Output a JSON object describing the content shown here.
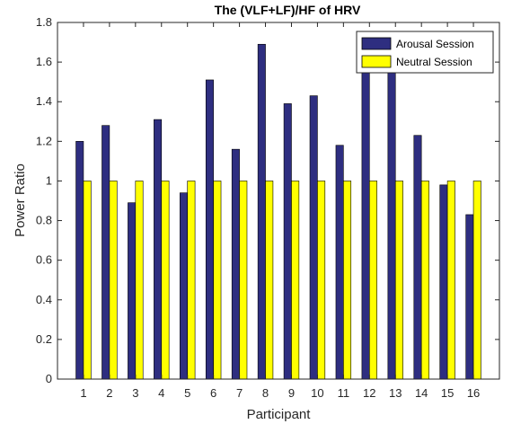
{
  "chart_data": {
    "type": "bar",
    "title": "The (VLF+LF)/HF of HRV",
    "xlabel": "Participant",
    "ylabel": "Power Ratio",
    "categories": [
      "1",
      "2",
      "3",
      "4",
      "5",
      "6",
      "7",
      "8",
      "9",
      "10",
      "11",
      "12",
      "13",
      "14",
      "15",
      "16"
    ],
    "series": [
      {
        "name": "Arousal Session",
        "color": "#2E2E80",
        "values": [
          1.2,
          1.28,
          0.89,
          1.31,
          0.94,
          1.51,
          1.16,
          1.69,
          1.39,
          1.43,
          1.18,
          1.56,
          1.56,
          1.23,
          0.98,
          0.83
        ]
      },
      {
        "name": "Neutral Session",
        "color": "#FFFF00",
        "values": [
          1,
          1,
          1,
          1,
          1,
          1,
          1,
          1,
          1,
          1,
          1,
          1,
          1,
          1,
          1,
          1
        ]
      }
    ],
    "ylim": [
      0,
      1.8
    ],
    "yticks": [
      "0",
      "0.2",
      "0.4",
      "0.6",
      "0.8",
      "1",
      "1.2",
      "1.4",
      "1.6",
      "1.8"
    ],
    "xlim": [
      0,
      17
    ],
    "grid": false,
    "legend_position": "top-right"
  }
}
